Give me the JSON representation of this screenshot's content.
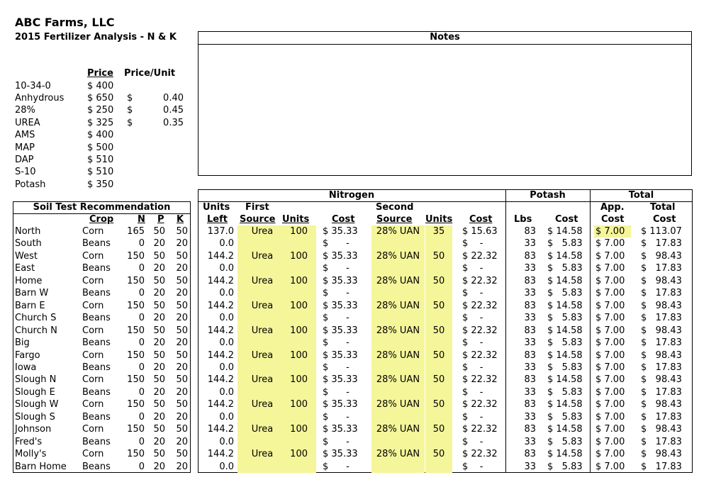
{
  "header": {
    "company": "ABC Farms, LLC",
    "subtitle": "2015 Fertilizer Analysis - N & K",
    "notes_label": "Notes"
  },
  "prices": {
    "col_price": "Price",
    "col_price_unit": "Price/Unit",
    "rows": [
      {
        "name": "10-34-0",
        "price": "$ 400",
        "unit_sym": "",
        "unit": ""
      },
      {
        "name": "Anhydrous",
        "price": "$ 650",
        "unit_sym": "$",
        "unit": "0.40"
      },
      {
        "name": "28%",
        "price": "$ 250",
        "unit_sym": "$",
        "unit": "0.45"
      },
      {
        "name": "UREA",
        "price": "$ 325",
        "unit_sym": "$",
        "unit": "0.35"
      },
      {
        "name": "AMS",
        "price": "$ 400",
        "unit_sym": "",
        "unit": ""
      },
      {
        "name": "MAP",
        "price": "$ 500",
        "unit_sym": "",
        "unit": ""
      },
      {
        "name": "DAP",
        "price": "$ 510",
        "unit_sym": "",
        "unit": ""
      },
      {
        "name": "S-10",
        "price": "$ 510",
        "unit_sym": "",
        "unit": ""
      },
      {
        "name": "Potash",
        "price": "$ 350",
        "unit_sym": "",
        "unit": ""
      }
    ]
  },
  "table": {
    "groups": {
      "nitrogen": "Nitrogen",
      "potash": "Potash",
      "total": "Total",
      "soil": "Soil Test Recommendation"
    },
    "headers": {
      "crop": "Crop",
      "n": "N",
      "p": "P",
      "k": "K",
      "units_left_1": "Units",
      "units_left_2": "Left",
      "first_1": "First",
      "first_2": "Source",
      "units1": "Units",
      "cost1": "Cost",
      "second_1": "Second",
      "second_2": "Source",
      "units2": "Units",
      "cost2": "Cost",
      "lbs": "Lbs",
      "pcost": "Cost",
      "app_1": "App.",
      "app_2": "Cost",
      "tot_1": "Total",
      "tot_2": "Cost"
    },
    "rows": [
      {
        "field": "North",
        "crop": "Corn",
        "n": "165",
        "p": "50",
        "k": "50",
        "left": "137.0",
        "src1": "Urea",
        "u1": "100",
        "c1": "$ 35.33",
        "src2": "28% UAN",
        "u2": "35",
        "c2": "$ 15.63",
        "lbs": "83",
        "pc": "$ 14.58",
        "app": "$ 7.00",
        "tot": "$ 113.07"
      },
      {
        "field": "South",
        "crop": "Beans",
        "n": "0",
        "p": "20",
        "k": "20",
        "left": "0.0",
        "src1": "",
        "u1": "",
        "c1": "$      -",
        "src2": "",
        "u2": "",
        "c2": "$    -",
        "lbs": "33",
        "pc": "$   5.83",
        "app": "$ 7.00",
        "tot": "$   17.83"
      },
      {
        "field": "West",
        "crop": "Corn",
        "n": "150",
        "p": "50",
        "k": "50",
        "left": "144.2",
        "src1": "Urea",
        "u1": "100",
        "c1": "$ 35.33",
        "src2": "28% UAN",
        "u2": "50",
        "c2": "$ 22.32",
        "lbs": "83",
        "pc": "$ 14.58",
        "app": "$ 7.00",
        "tot": "$   98.43"
      },
      {
        "field": "East",
        "crop": "Beans",
        "n": "0",
        "p": "20",
        "k": "20",
        "left": "0.0",
        "src1": "",
        "u1": "",
        "c1": "$      -",
        "src2": "",
        "u2": "",
        "c2": "$    -",
        "lbs": "33",
        "pc": "$   5.83",
        "app": "$ 7.00",
        "tot": "$   17.83"
      },
      {
        "field": "Home",
        "crop": "Corn",
        "n": "150",
        "p": "50",
        "k": "50",
        "left": "144.2",
        "src1": "Urea",
        "u1": "100",
        "c1": "$ 35.33",
        "src2": "28% UAN",
        "u2": "50",
        "c2": "$ 22.32",
        "lbs": "83",
        "pc": "$ 14.58",
        "app": "$ 7.00",
        "tot": "$   98.43"
      },
      {
        "field": "Barn W",
        "crop": "Beans",
        "n": "0",
        "p": "20",
        "k": "20",
        "left": "0.0",
        "src1": "",
        "u1": "",
        "c1": "$      -",
        "src2": "",
        "u2": "",
        "c2": "$    -",
        "lbs": "33",
        "pc": "$   5.83",
        "app": "$ 7.00",
        "tot": "$   17.83"
      },
      {
        "field": "Barn E",
        "crop": "Corn",
        "n": "150",
        "p": "50",
        "k": "50",
        "left": "144.2",
        "src1": "Urea",
        "u1": "100",
        "c1": "$ 35.33",
        "src2": "28% UAN",
        "u2": "50",
        "c2": "$ 22.32",
        "lbs": "83",
        "pc": "$ 14.58",
        "app": "$ 7.00",
        "tot": "$   98.43"
      },
      {
        "field": "Church S",
        "crop": "Beans",
        "n": "0",
        "p": "20",
        "k": "20",
        "left": "0.0",
        "src1": "",
        "u1": "",
        "c1": "$      -",
        "src2": "",
        "u2": "",
        "c2": "$    -",
        "lbs": "33",
        "pc": "$   5.83",
        "app": "$ 7.00",
        "tot": "$   17.83"
      },
      {
        "field": "Church N",
        "crop": "Corn",
        "n": "150",
        "p": "50",
        "k": "50",
        "left": "144.2",
        "src1": "Urea",
        "u1": "100",
        "c1": "$ 35.33",
        "src2": "28% UAN",
        "u2": "50",
        "c2": "$ 22.32",
        "lbs": "83",
        "pc": "$ 14.58",
        "app": "$ 7.00",
        "tot": "$   98.43"
      },
      {
        "field": "Big",
        "crop": "Beans",
        "n": "0",
        "p": "20",
        "k": "20",
        "left": "0.0",
        "src1": "",
        "u1": "",
        "c1": "$      -",
        "src2": "",
        "u2": "",
        "c2": "$    -",
        "lbs": "33",
        "pc": "$   5.83",
        "app": "$ 7.00",
        "tot": "$   17.83"
      },
      {
        "field": "Fargo",
        "crop": "Corn",
        "n": "150",
        "p": "50",
        "k": "50",
        "left": "144.2",
        "src1": "Urea",
        "u1": "100",
        "c1": "$ 35.33",
        "src2": "28% UAN",
        "u2": "50",
        "c2": "$ 22.32",
        "lbs": "83",
        "pc": "$ 14.58",
        "app": "$ 7.00",
        "tot": "$   98.43"
      },
      {
        "field": "Iowa",
        "crop": "Beans",
        "n": "0",
        "p": "20",
        "k": "20",
        "left": "0.0",
        "src1": "",
        "u1": "",
        "c1": "$      -",
        "src2": "",
        "u2": "",
        "c2": "$    -",
        "lbs": "33",
        "pc": "$   5.83",
        "app": "$ 7.00",
        "tot": "$   17.83"
      },
      {
        "field": "Slough N",
        "crop": "Corn",
        "n": "150",
        "p": "50",
        "k": "50",
        "left": "144.2",
        "src1": "Urea",
        "u1": "100",
        "c1": "$ 35.33",
        "src2": "28% UAN",
        "u2": "50",
        "c2": "$ 22.32",
        "lbs": "83",
        "pc": "$ 14.58",
        "app": "$ 7.00",
        "tot": "$   98.43"
      },
      {
        "field": "Slough E",
        "crop": "Beans",
        "n": "0",
        "p": "20",
        "k": "20",
        "left": "0.0",
        "src1": "",
        "u1": "",
        "c1": "$      -",
        "src2": "",
        "u2": "",
        "c2": "$    -",
        "lbs": "33",
        "pc": "$   5.83",
        "app": "$ 7.00",
        "tot": "$   17.83"
      },
      {
        "field": "Slough W",
        "crop": "Corn",
        "n": "150",
        "p": "50",
        "k": "50",
        "left": "144.2",
        "src1": "Urea",
        "u1": "100",
        "c1": "$ 35.33",
        "src2": "28% UAN",
        "u2": "50",
        "c2": "$ 22.32",
        "lbs": "83",
        "pc": "$ 14.58",
        "app": "$ 7.00",
        "tot": "$   98.43"
      },
      {
        "field": "Slough S",
        "crop": "Beans",
        "n": "0",
        "p": "20",
        "k": "20",
        "left": "0.0",
        "src1": "",
        "u1": "",
        "c1": "$      -",
        "src2": "",
        "u2": "",
        "c2": "$    -",
        "lbs": "33",
        "pc": "$   5.83",
        "app": "$ 7.00",
        "tot": "$   17.83"
      },
      {
        "field": "Johnson",
        "crop": "Corn",
        "n": "150",
        "p": "50",
        "k": "50",
        "left": "144.2",
        "src1": "Urea",
        "u1": "100",
        "c1": "$ 35.33",
        "src2": "28% UAN",
        "u2": "50",
        "c2": "$ 22.32",
        "lbs": "83",
        "pc": "$ 14.58",
        "app": "$ 7.00",
        "tot": "$   98.43"
      },
      {
        "field": "Fred's",
        "crop": "Beans",
        "n": "0",
        "p": "20",
        "k": "20",
        "left": "0.0",
        "src1": "",
        "u1": "",
        "c1": "$      -",
        "src2": "",
        "u2": "",
        "c2": "$    -",
        "lbs": "33",
        "pc": "$   5.83",
        "app": "$ 7.00",
        "tot": "$   17.83"
      },
      {
        "field": "Molly's",
        "crop": "Corn",
        "n": "150",
        "p": "50",
        "k": "50",
        "left": "144.2",
        "src1": "Urea",
        "u1": "100",
        "c1": "$ 35.33",
        "src2": "28% UAN",
        "u2": "50",
        "c2": "$ 22.32",
        "lbs": "83",
        "pc": "$ 14.58",
        "app": "$ 7.00",
        "tot": "$   98.43"
      },
      {
        "field": "Barn Home",
        "crop": "Beans",
        "n": "0",
        "p": "20",
        "k": "20",
        "left": "0.0",
        "src1": "",
        "u1": "",
        "c1": "$      -",
        "src2": "",
        "u2": "",
        "c2": "$    -",
        "lbs": "33",
        "pc": "$   5.83",
        "app": "$ 7.00",
        "tot": "$   17.83"
      }
    ]
  },
  "colors": {
    "highlight": "#f5f59a"
  }
}
